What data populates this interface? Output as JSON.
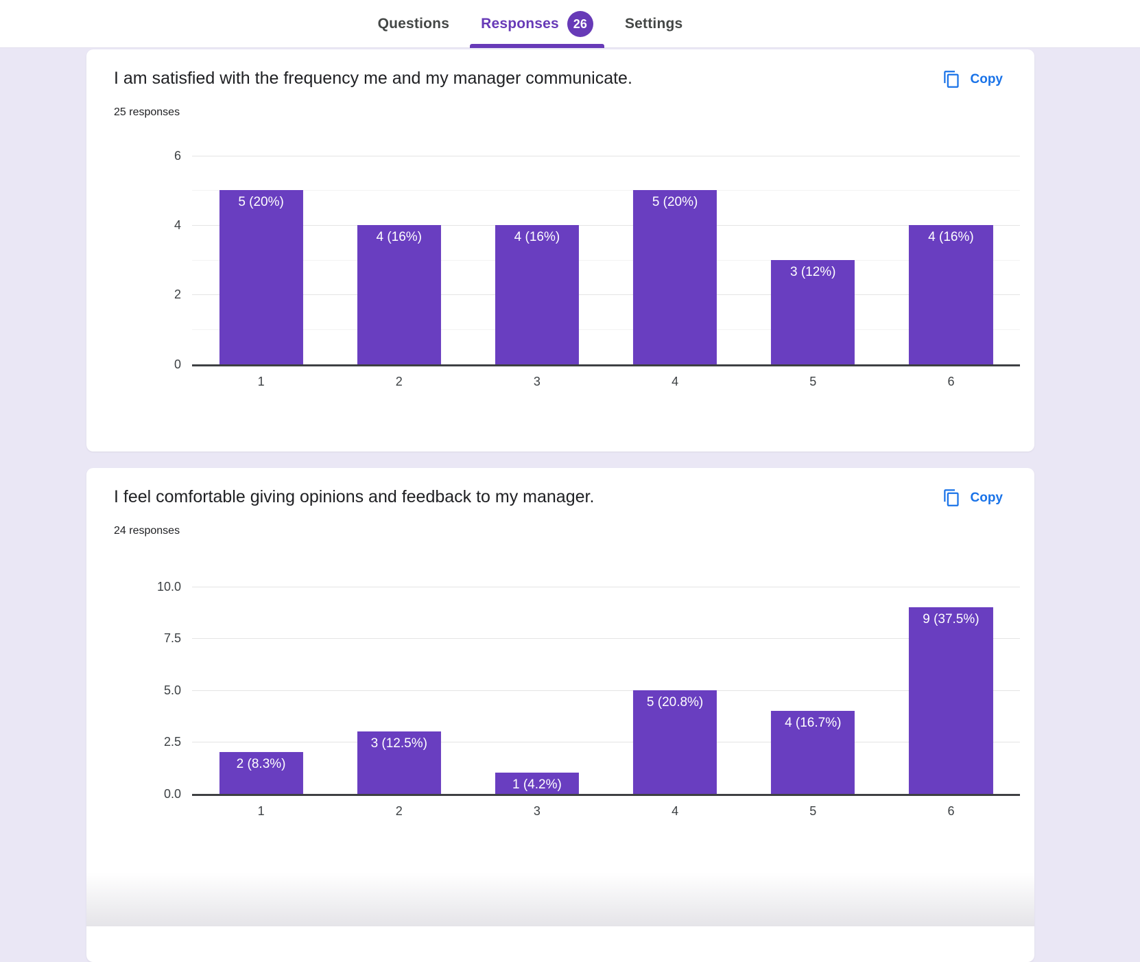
{
  "tabs": {
    "questions": "Questions",
    "responses": "Responses",
    "responses_count": "26",
    "settings": "Settings"
  },
  "colors": {
    "accent_purple": "#673ab7",
    "bar_purple": "#693ec0",
    "link_blue": "#1a73e8",
    "page_background": "#eae7f5"
  },
  "cards": [
    {
      "title": "I am satisfied with the frequency me and my manager communicate.",
      "responses_label": "25 responses",
      "copy_label": "Copy"
    },
    {
      "title": "I feel comfortable giving opinions and feedback to my manager.",
      "responses_label": "24 responses",
      "copy_label": "Copy"
    }
  ],
  "chart_data": [
    {
      "type": "bar",
      "title": "I am satisfied with the frequency me and my manager communicate.",
      "categories": [
        "1",
        "2",
        "3",
        "4",
        "5",
        "6"
      ],
      "values": [
        5,
        4,
        4,
        5,
        3,
        4
      ],
      "bar_labels": [
        "5 (20%)",
        "4 (16%)",
        "4 (16%)",
        "5 (20%)",
        "3 (12%)",
        "4 (16%)"
      ],
      "xlabel": "",
      "ylabel": "",
      "ylim": [
        0,
        6
      ],
      "yticks": [
        {
          "v": 0,
          "label": "0"
        },
        {
          "v": 1,
          "minor": true
        },
        {
          "v": 2,
          "label": "2"
        },
        {
          "v": 3,
          "minor": true
        },
        {
          "v": 4,
          "label": "4"
        },
        {
          "v": 5,
          "minor": true
        },
        {
          "v": 6,
          "label": "6"
        }
      ],
      "grid": true,
      "legend": "none",
      "bar_color": "#693ec0"
    },
    {
      "type": "bar",
      "title": "I feel comfortable giving opinions and feedback to my manager.",
      "categories": [
        "1",
        "2",
        "3",
        "4",
        "5",
        "6"
      ],
      "values": [
        2,
        3,
        1,
        5,
        4,
        9
      ],
      "bar_labels": [
        "2 (8.3%)",
        "3 (12.5%)",
        "1 (4.2%)",
        "5 (20.8%)",
        "4 (16.7%)",
        "9 (37.5%)"
      ],
      "xlabel": "",
      "ylabel": "",
      "ylim": [
        0,
        10
      ],
      "yticks": [
        {
          "v": 0,
          "label": "0.0"
        },
        {
          "v": 2.5,
          "label": "2.5"
        },
        {
          "v": 5,
          "label": "5.0"
        },
        {
          "v": 7.5,
          "label": "7.5"
        },
        {
          "v": 10,
          "label": "10.0"
        }
      ],
      "grid": true,
      "legend": "none",
      "bar_color": "#693ec0"
    }
  ]
}
